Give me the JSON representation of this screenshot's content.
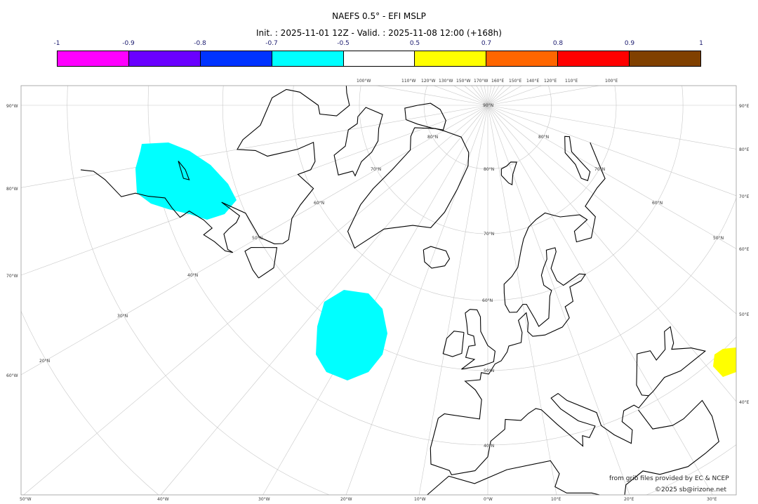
{
  "title": "NAEFS 0.5° - EFI MSLP",
  "subtitle": "Init. : 2025-11-01 12Z - Valid. : 2025-11-08 12:00 (+168h)",
  "colorbar": {
    "ticks": [
      "-1",
      "-0.9",
      "-0.8",
      "-0.7",
      "-0.5",
      "0.5",
      "0.7",
      "0.8",
      "0.9",
      "1"
    ],
    "colors": [
      "#ff00ff",
      "#6a00ff",
      "#0033ff",
      "#00ffff",
      "#ffffff",
      "#ffff00",
      "#ff6600",
      "#ff0000",
      "#804000"
    ]
  },
  "map": {
    "projection": "polar stereographic",
    "anomaly_colors": {
      "cyan": "#00ffff",
      "yellow": "#ffff00"
    },
    "top_labels": [
      "100°W",
      "110°W",
      "120°W",
      "130°W",
      "150°W",
      "170°W",
      "160°E",
      "150°E",
      "140°E",
      "120°E",
      "110°E",
      "100°E"
    ],
    "left_labels": [
      "90°W",
      "80°W",
      "70°W",
      "60°W"
    ],
    "right_labels": [
      "90°E",
      "80°E",
      "70°E",
      "60°E",
      "50°E",
      "40°E"
    ],
    "bottom_labels": [
      "50°W",
      "40°W",
      "30°W",
      "20°W",
      "10°W",
      "0°W",
      "10°E",
      "20°E",
      "30°E"
    ],
    "lat_labels": [
      "90°N",
      "80°N",
      "80°N",
      "80°N",
      "70°N",
      "70°N",
      "70°N",
      "60°N",
      "60°N",
      "60°N",
      "50°N",
      "50°N",
      "50°N",
      "40°N",
      "40°N",
      "30°N",
      "20°N"
    ]
  },
  "credits": {
    "source": "from grib files provided by EC & NCEP",
    "copyright": "©2025 sb@irizone.net"
  }
}
